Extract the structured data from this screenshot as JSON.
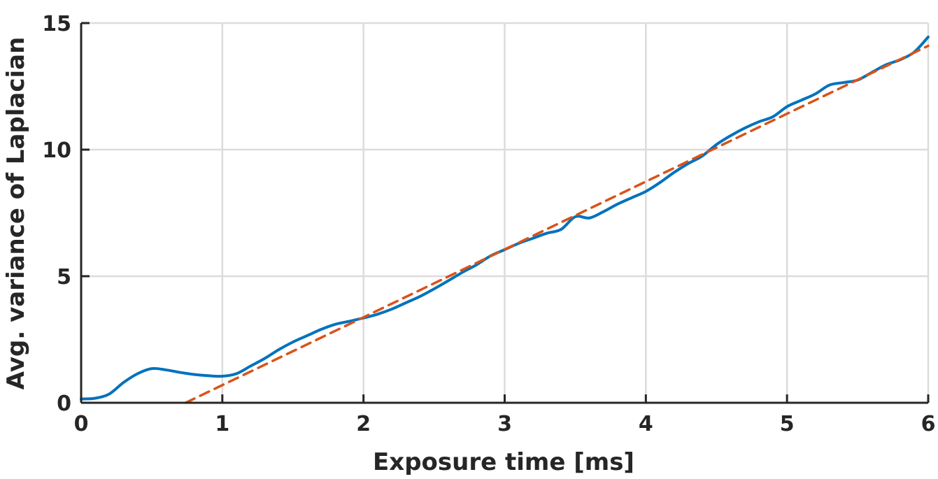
{
  "chart_data": {
    "type": "line",
    "title": "",
    "xlabel": "Exposure time [ms]",
    "ylabel": "Avg. variance of Laplacian",
    "xlim": [
      0,
      6
    ],
    "ylim": [
      0,
      15
    ],
    "xticks": [
      0,
      1,
      2,
      3,
      4,
      5,
      6
    ],
    "yticks": [
      0,
      5,
      10,
      15
    ],
    "xtick_labels": [
      "0",
      "1",
      "2",
      "3",
      "4",
      "5",
      "6"
    ],
    "ytick_labels": [
      "0",
      "5",
      "10",
      "15"
    ],
    "grid": true,
    "series": [
      {
        "style": "solid",
        "color": "#0072BD",
        "x": [
          0,
          0.1,
          0.2,
          0.3,
          0.4,
          0.5,
          0.6,
          0.7,
          0.8,
          0.9,
          1.0,
          1.1,
          1.2,
          1.3,
          1.4,
          1.5,
          1.6,
          1.7,
          1.8,
          1.9,
          2.0,
          2.1,
          2.2,
          2.3,
          2.4,
          2.5,
          2.6,
          2.7,
          2.8,
          2.9,
          3.0,
          3.1,
          3.2,
          3.3,
          3.4,
          3.5,
          3.6,
          3.7,
          3.8,
          3.9,
          4.0,
          4.1,
          4.2,
          4.3,
          4.4,
          4.5,
          4.6,
          4.7,
          4.8,
          4.9,
          5.0,
          5.1,
          5.2,
          5.3,
          5.4,
          5.5,
          5.6,
          5.7,
          5.8,
          5.9,
          6.0
        ],
        "y": [
          0.15,
          0.18,
          0.35,
          0.8,
          1.15,
          1.35,
          1.3,
          1.2,
          1.12,
          1.07,
          1.05,
          1.15,
          1.45,
          1.75,
          2.1,
          2.4,
          2.65,
          2.9,
          3.1,
          3.22,
          3.35,
          3.5,
          3.7,
          3.95,
          4.2,
          4.5,
          4.82,
          5.15,
          5.45,
          5.8,
          6.05,
          6.3,
          6.5,
          6.7,
          6.85,
          7.35,
          7.3,
          7.55,
          7.85,
          8.1,
          8.35,
          8.7,
          9.1,
          9.45,
          9.75,
          10.2,
          10.55,
          10.85,
          11.1,
          11.3,
          11.7,
          11.95,
          12.2,
          12.55,
          12.65,
          12.75,
          13.05,
          13.35,
          13.55,
          13.85,
          14.45
        ]
      },
      {
        "style": "dashed",
        "color": "#D95319",
        "x": [
          0.74,
          6.0
        ],
        "y": [
          0.0,
          14.1
        ]
      }
    ]
  }
}
